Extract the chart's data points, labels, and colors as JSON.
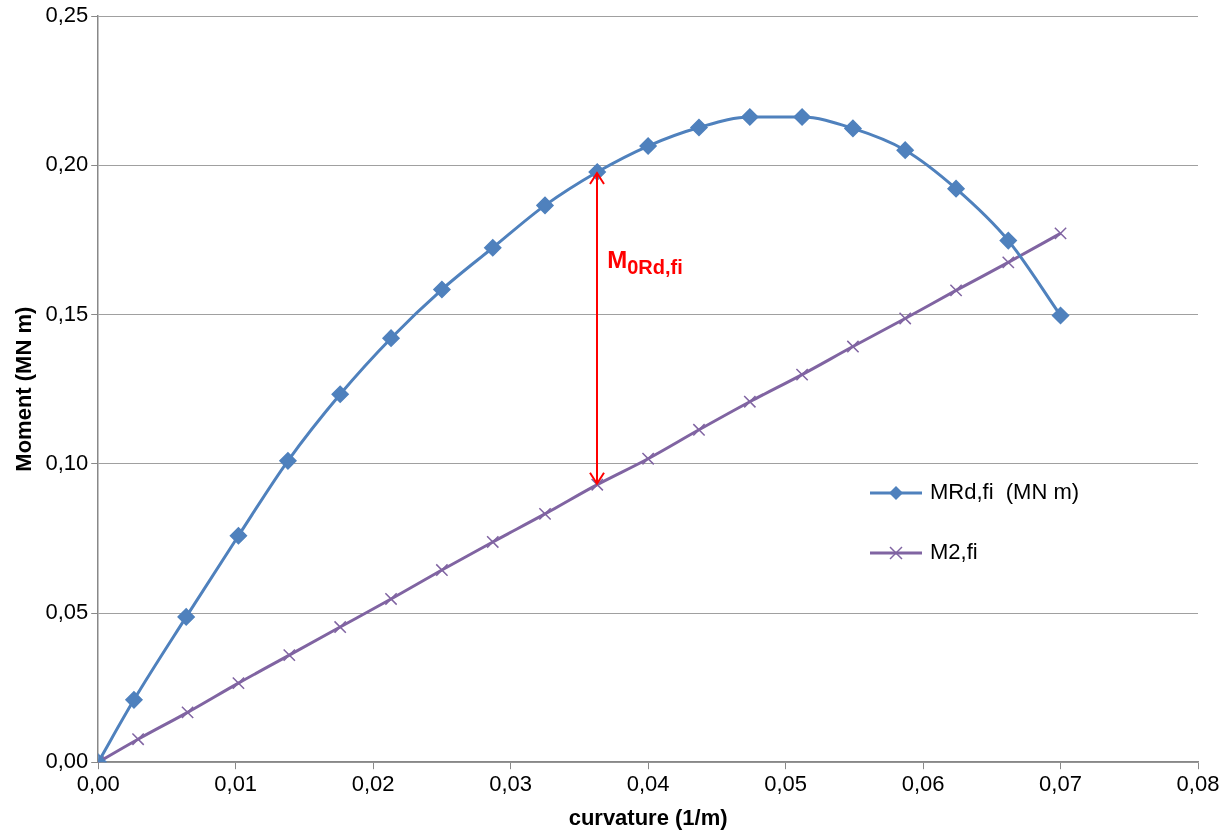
{
  "chart_data": {
    "type": "line",
    "xlabel": "curvature (1/m)",
    "ylabel": "Moment (MN m)",
    "xlim": [
      0,
      0.08
    ],
    "xticks": [
      {
        "value": 0,
        "label": "0,00"
      },
      {
        "value": 0.01,
        "label": "0,01"
      },
      {
        "value": 0.02,
        "label": "0,02"
      },
      {
        "value": 0.03,
        "label": "0,03"
      },
      {
        "value": 0.04,
        "label": "0,04"
      },
      {
        "value": 0.05,
        "label": "0,05"
      },
      {
        "value": 0.06,
        "label": "0,06"
      },
      {
        "value": 0.07,
        "label": "0,07"
      },
      {
        "value": 0.08,
        "label": "0,08"
      }
    ],
    "ylim": [
      0,
      0.25
    ],
    "yticks": [
      {
        "value": 0,
        "label": "0,00"
      },
      {
        "value": 0.05,
        "label": "0,05"
      },
      {
        "value": 0.1,
        "label": "0,10"
      },
      {
        "value": 0.15,
        "label": "0,15"
      },
      {
        "value": 0.2,
        "label": "0,20"
      },
      {
        "value": 0.25,
        "label": "0,25"
      }
    ],
    "grid": "y",
    "legend": "right",
    "series": [
      {
        "name": "MRd,fi  (MN m)",
        "color": "#4f81bd",
        "marker": "diamond",
        "x": [
          0,
          0.0026,
          0.0064,
          0.0102,
          0.0138,
          0.0176,
          0.0213,
          0.025,
          0.0287,
          0.0325,
          0.0363,
          0.04,
          0.0437,
          0.0474,
          0.0512,
          0.0549,
          0.0587,
          0.0624,
          0.0662,
          0.07
        ],
        "values": [
          0,
          0.0209,
          0.0487,
          0.0759,
          0.101,
          0.1233,
          0.1421,
          0.1584,
          0.1724,
          0.1866,
          0.1978,
          0.2065,
          0.2127,
          0.2162,
          0.2162,
          0.2124,
          0.2051,
          0.1922,
          0.1748,
          0.1497
        ]
      },
      {
        "name": "M2,fi",
        "color": "#8064a2",
        "marker": "cross",
        "x": [
          0,
          0.0029,
          0.0065,
          0.0102,
          0.0139,
          0.0176,
          0.0213,
          0.025,
          0.0287,
          0.0325,
          0.0363,
          0.04,
          0.0437,
          0.0474,
          0.0512,
          0.0549,
          0.0587,
          0.0624,
          0.0662,
          0.07
        ],
        "values": [
          0,
          0.0077,
          0.0167,
          0.0265,
          0.0359,
          0.0453,
          0.0547,
          0.0644,
          0.0738,
          0.0832,
          0.093,
          0.1017,
          0.1114,
          0.1208,
          0.1299,
          0.1393,
          0.1487,
          0.1581,
          0.1675,
          0.1772
        ]
      }
    ],
    "annotations": [
      "M$_{0Rd,fi}$"
    ]
  }
}
